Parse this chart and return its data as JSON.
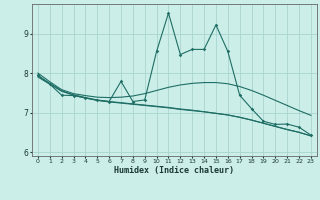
{
  "xlabel": "Humidex (Indice chaleur)",
  "background_color": "#cceee8",
  "grid_color": "#aad4ce",
  "line_color": "#1e6e65",
  "xlim": [
    -0.5,
    23.5
  ],
  "ylim": [
    5.9,
    9.75
  ],
  "yticks": [
    6,
    7,
    8,
    9
  ],
  "xticks": [
    0,
    1,
    2,
    3,
    4,
    5,
    6,
    7,
    8,
    9,
    10,
    11,
    12,
    13,
    14,
    15,
    16,
    17,
    18,
    19,
    20,
    21,
    22,
    23
  ],
  "series1_x": [
    0,
    1,
    2,
    3,
    4,
    5,
    6,
    7,
    8,
    9,
    10,
    11,
    12,
    13,
    14,
    15,
    16,
    17,
    18,
    19,
    20,
    21,
    22,
    23
  ],
  "series1_y": [
    7.95,
    7.72,
    7.44,
    7.43,
    7.37,
    7.31,
    7.28,
    7.79,
    7.28,
    7.32,
    8.55,
    9.52,
    8.47,
    8.6,
    8.6,
    9.22,
    8.55,
    7.44,
    7.1,
    6.78,
    6.7,
    6.71,
    6.63,
    6.43
  ],
  "series2_x": [
    0,
    1,
    2,
    3,
    4,
    5,
    6,
    7,
    8,
    9,
    10,
    11,
    12,
    13,
    14,
    15,
    16,
    17,
    18,
    19,
    20,
    21,
    22,
    23
  ],
  "series2_y": [
    8.0,
    7.78,
    7.58,
    7.48,
    7.43,
    7.39,
    7.38,
    7.39,
    7.42,
    7.48,
    7.56,
    7.64,
    7.7,
    7.74,
    7.76,
    7.76,
    7.73,
    7.66,
    7.56,
    7.44,
    7.31,
    7.18,
    7.05,
    6.93
  ],
  "series3_x": [
    0,
    1,
    2,
    3,
    4,
    5,
    6,
    7,
    8,
    9,
    10,
    11,
    12,
    13,
    14,
    15,
    16,
    17,
    18,
    19,
    20,
    21,
    22,
    23
  ],
  "series3_y": [
    7.9,
    7.72,
    7.54,
    7.44,
    7.37,
    7.31,
    7.27,
    7.24,
    7.21,
    7.18,
    7.15,
    7.12,
    7.08,
    7.05,
    7.02,
    6.98,
    6.94,
    6.88,
    6.81,
    6.73,
    6.65,
    6.57,
    6.5,
    6.41
  ],
  "series4_x": [
    0,
    1,
    2,
    3,
    4,
    5,
    6,
    7,
    8,
    9,
    10,
    11,
    12,
    13,
    14,
    15,
    16,
    17,
    18,
    19,
    20,
    21,
    22,
    23
  ],
  "series4_y": [
    7.93,
    7.74,
    7.55,
    7.45,
    7.38,
    7.32,
    7.28,
    7.25,
    7.22,
    7.19,
    7.16,
    7.13,
    7.09,
    7.06,
    7.02,
    6.98,
    6.94,
    6.88,
    6.81,
    6.73,
    6.65,
    6.57,
    6.5,
    6.41
  ]
}
